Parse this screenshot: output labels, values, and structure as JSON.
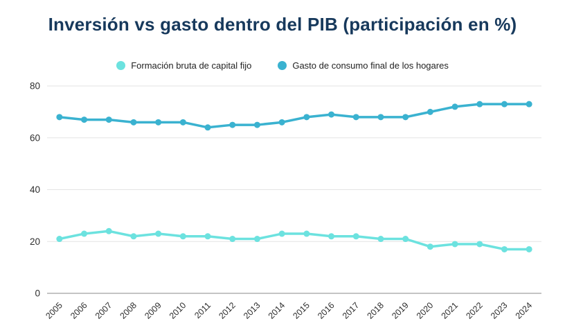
{
  "title": "Inversión vs gasto dentro del PIB (participación en %)",
  "colors": {
    "title_text": "#17395c",
    "grid_line": "#e3e3e3",
    "zero_axis_line": "#b0b0b0",
    "tick_text": "#2e2e2e"
  },
  "chart_data": {
    "type": "line",
    "title": "Inversión vs gasto dentro del PIB (participación en %)",
    "xlabel": "",
    "ylabel": "",
    "ylim": [
      0,
      80
    ],
    "yticks": [
      0,
      20,
      40,
      60,
      80
    ],
    "grid": true,
    "legend_position": "top",
    "categories": [
      "2005",
      "2006",
      "2007",
      "2008",
      "2009",
      "2010",
      "2011",
      "2012",
      "2013",
      "2014",
      "2015",
      "2016",
      "2017",
      "2018",
      "2019",
      "2020",
      "2021",
      "2022",
      "2023",
      "2024"
    ],
    "series": [
      {
        "name": "Formación bruta de capital fijo",
        "color": "#6ce2df",
        "values": [
          21,
          23,
          24,
          22,
          23,
          22,
          22,
          21,
          21,
          23,
          23,
          22,
          22,
          21,
          21,
          18,
          19,
          19,
          17,
          17
        ]
      },
      {
        "name": "Gasto de consumo final de los hogares",
        "color": "#3ab2d0",
        "values": [
          68,
          67,
          67,
          66,
          66,
          66,
          64,
          65,
          65,
          66,
          68,
          69,
          68,
          68,
          68,
          70,
          72,
          73,
          73,
          73
        ]
      }
    ]
  }
}
